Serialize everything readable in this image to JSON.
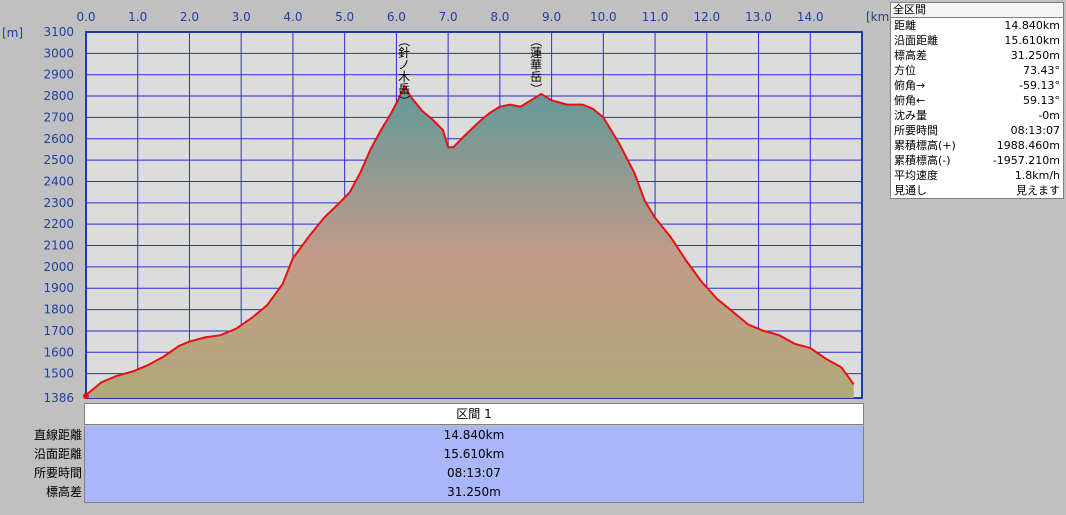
{
  "chart_data": {
    "type": "area",
    "xunit": "[km]",
    "yunit": "[m]",
    "xlim": [
      0,
      15
    ],
    "ylim": [
      1386,
      3100
    ],
    "xticks": [
      "0.0",
      "1.0",
      "2.0",
      "3.0",
      "4.0",
      "5.0",
      "6.0",
      "7.0",
      "8.0",
      "9.0",
      "10.0",
      "11.0",
      "12.0",
      "13.0",
      "14.0"
    ],
    "yticks": [
      "3100",
      "3000",
      "2900",
      "2800",
      "2700",
      "2600",
      "2500",
      "2400",
      "2300",
      "2200",
      "2100",
      "2000",
      "1900",
      "1800",
      "1700",
      "1600",
      "1500",
      "1386"
    ],
    "x": [
      0,
      0.3,
      0.6,
      0.9,
      1.2,
      1.5,
      1.8,
      2.0,
      2.3,
      2.6,
      2.9,
      3.2,
      3.5,
      3.8,
      4.0,
      4.3,
      4.6,
      4.9,
      5.1,
      5.3,
      5.5,
      5.7,
      5.9,
      6.05,
      6.15,
      6.3,
      6.5,
      6.7,
      6.9,
      7.0,
      7.1,
      7.3,
      7.6,
      7.8,
      8.0,
      8.2,
      8.4,
      8.6,
      8.8,
      9.0,
      9.3,
      9.6,
      9.8,
      10.0,
      10.3,
      10.6,
      10.8,
      11.0,
      11.3,
      11.6,
      11.9,
      12.2,
      12.5,
      12.8,
      13.1,
      13.4,
      13.7,
      14.0,
      14.3,
      14.6,
      14.84
    ],
    "y": [
      1400,
      1460,
      1490,
      1510,
      1540,
      1580,
      1630,
      1650,
      1670,
      1680,
      1710,
      1760,
      1820,
      1920,
      2040,
      2140,
      2230,
      2300,
      2350,
      2440,
      2550,
      2640,
      2720,
      2790,
      2845,
      2790,
      2730,
      2690,
      2640,
      2560,
      2560,
      2610,
      2680,
      2720,
      2750,
      2760,
      2750,
      2780,
      2810,
      2780,
      2760,
      2760,
      2740,
      2700,
      2580,
      2440,
      2310,
      2230,
      2140,
      2030,
      1930,
      1850,
      1790,
      1730,
      1700,
      1680,
      1640,
      1620,
      1570,
      1530,
      1450
    ],
    "annotations": [
      {
        "label": "（針ノ木岳）",
        "x": 6.15,
        "y": 2845
      },
      {
        "label": "（蓮華岳）",
        "x": 8.7,
        "y": 2810
      }
    ]
  },
  "summary": {
    "title": "全区間",
    "rows": [
      {
        "label": "距離",
        "value": "14.840km"
      },
      {
        "label": "沿面距離",
        "value": "15.610km"
      },
      {
        "label": "標高差",
        "value": "31.250m"
      },
      {
        "label": "方位",
        "value": "73.43°"
      },
      {
        "label": "俯角→",
        "value": "-59.13°"
      },
      {
        "label": "俯角←",
        "value": "59.13°"
      },
      {
        "label": "沈み量",
        "value": "-0m"
      },
      {
        "label": "所要時間",
        "value": "08:13:07"
      },
      {
        "label": "累積標高(+)",
        "value": "1988.460m"
      },
      {
        "label": "累積標高(-)",
        "value": "-1957.210m"
      },
      {
        "label": "平均速度",
        "value": "1.8km/h"
      },
      {
        "label": "見通し",
        "value": "見えます"
      }
    ]
  },
  "section": {
    "header": "区間 1",
    "rows": [
      {
        "label": "直線距離",
        "value": "14.840km"
      },
      {
        "label": "沿面距離",
        "value": "15.610km"
      },
      {
        "label": "所要時間",
        "value": "08:13:07"
      },
      {
        "label": "標高差",
        "value": "31.250m"
      }
    ]
  }
}
